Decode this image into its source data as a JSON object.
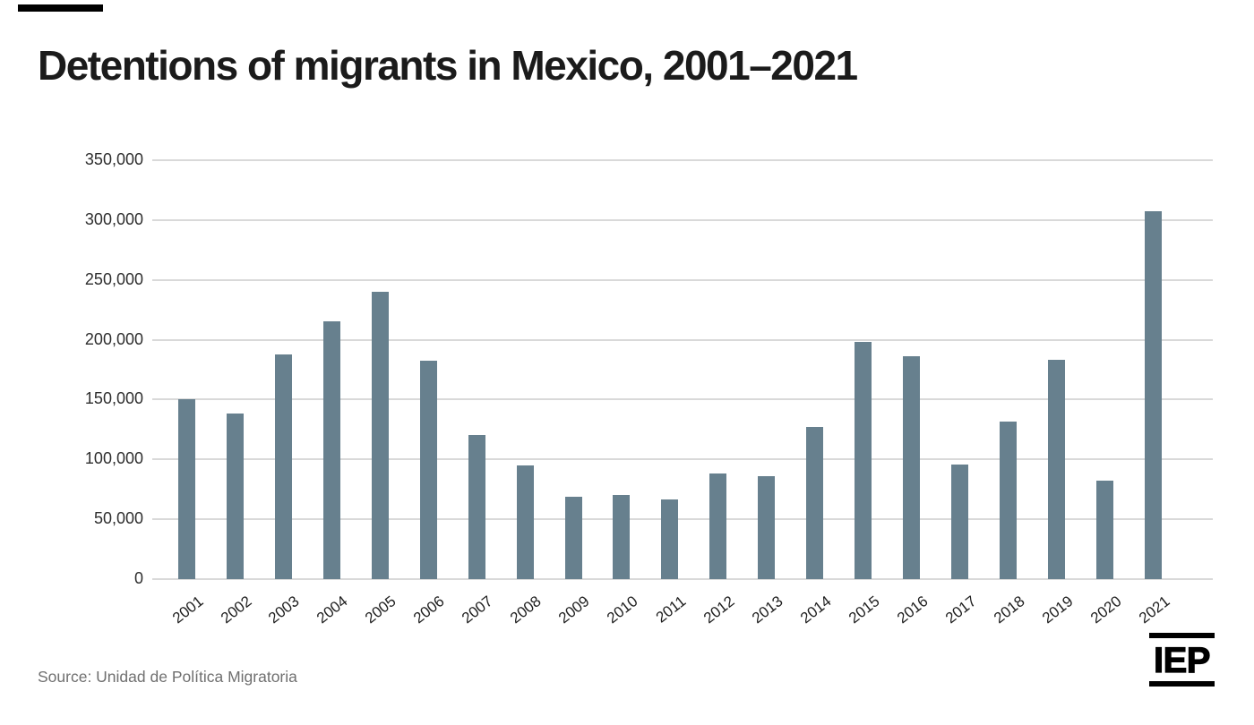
{
  "title": "Detentions of migrants in Mexico, 2001–2021",
  "source": "Source: Unidad de Política Migratoria",
  "logo": {
    "text": "IEP"
  },
  "colors": {
    "bar": "#67808E",
    "gridline": "#D9D9D9",
    "title_text": "#1B1B1B",
    "axis_text": "#2E2E2E",
    "source_text": "#707070",
    "accent": "#000000"
  },
  "chart_data": {
    "type": "bar",
    "title": "Detentions of migrants in Mexico, 2001–2021",
    "xlabel": "",
    "ylabel": "",
    "categories": [
      "2001",
      "2002",
      "2003",
      "2004",
      "2005",
      "2006",
      "2007",
      "2008",
      "2009",
      "2010",
      "2011",
      "2012",
      "2013",
      "2014",
      "2015",
      "2016",
      "2017",
      "2018",
      "2019",
      "2020",
      "2021"
    ],
    "values": [
      150530,
      138061,
      187614,
      215695,
      240269,
      182705,
      120455,
      94723,
      69033,
      70102,
      66583,
      88506,
      86298,
      127149,
      198141,
      186216,
      95497,
      131445,
      182940,
      82379,
      307679
    ],
    "ylim": [
      0,
      350000
    ],
    "ytick_interval": 50000,
    "ytick_labels": [
      "0",
      "50,000",
      "100,000",
      "150,000",
      "200,000",
      "250,000",
      "300,000",
      "350,000"
    ],
    "grid": true,
    "legend": false,
    "bar_color": "#67808E",
    "gridline_color": "#D9D9D9"
  }
}
